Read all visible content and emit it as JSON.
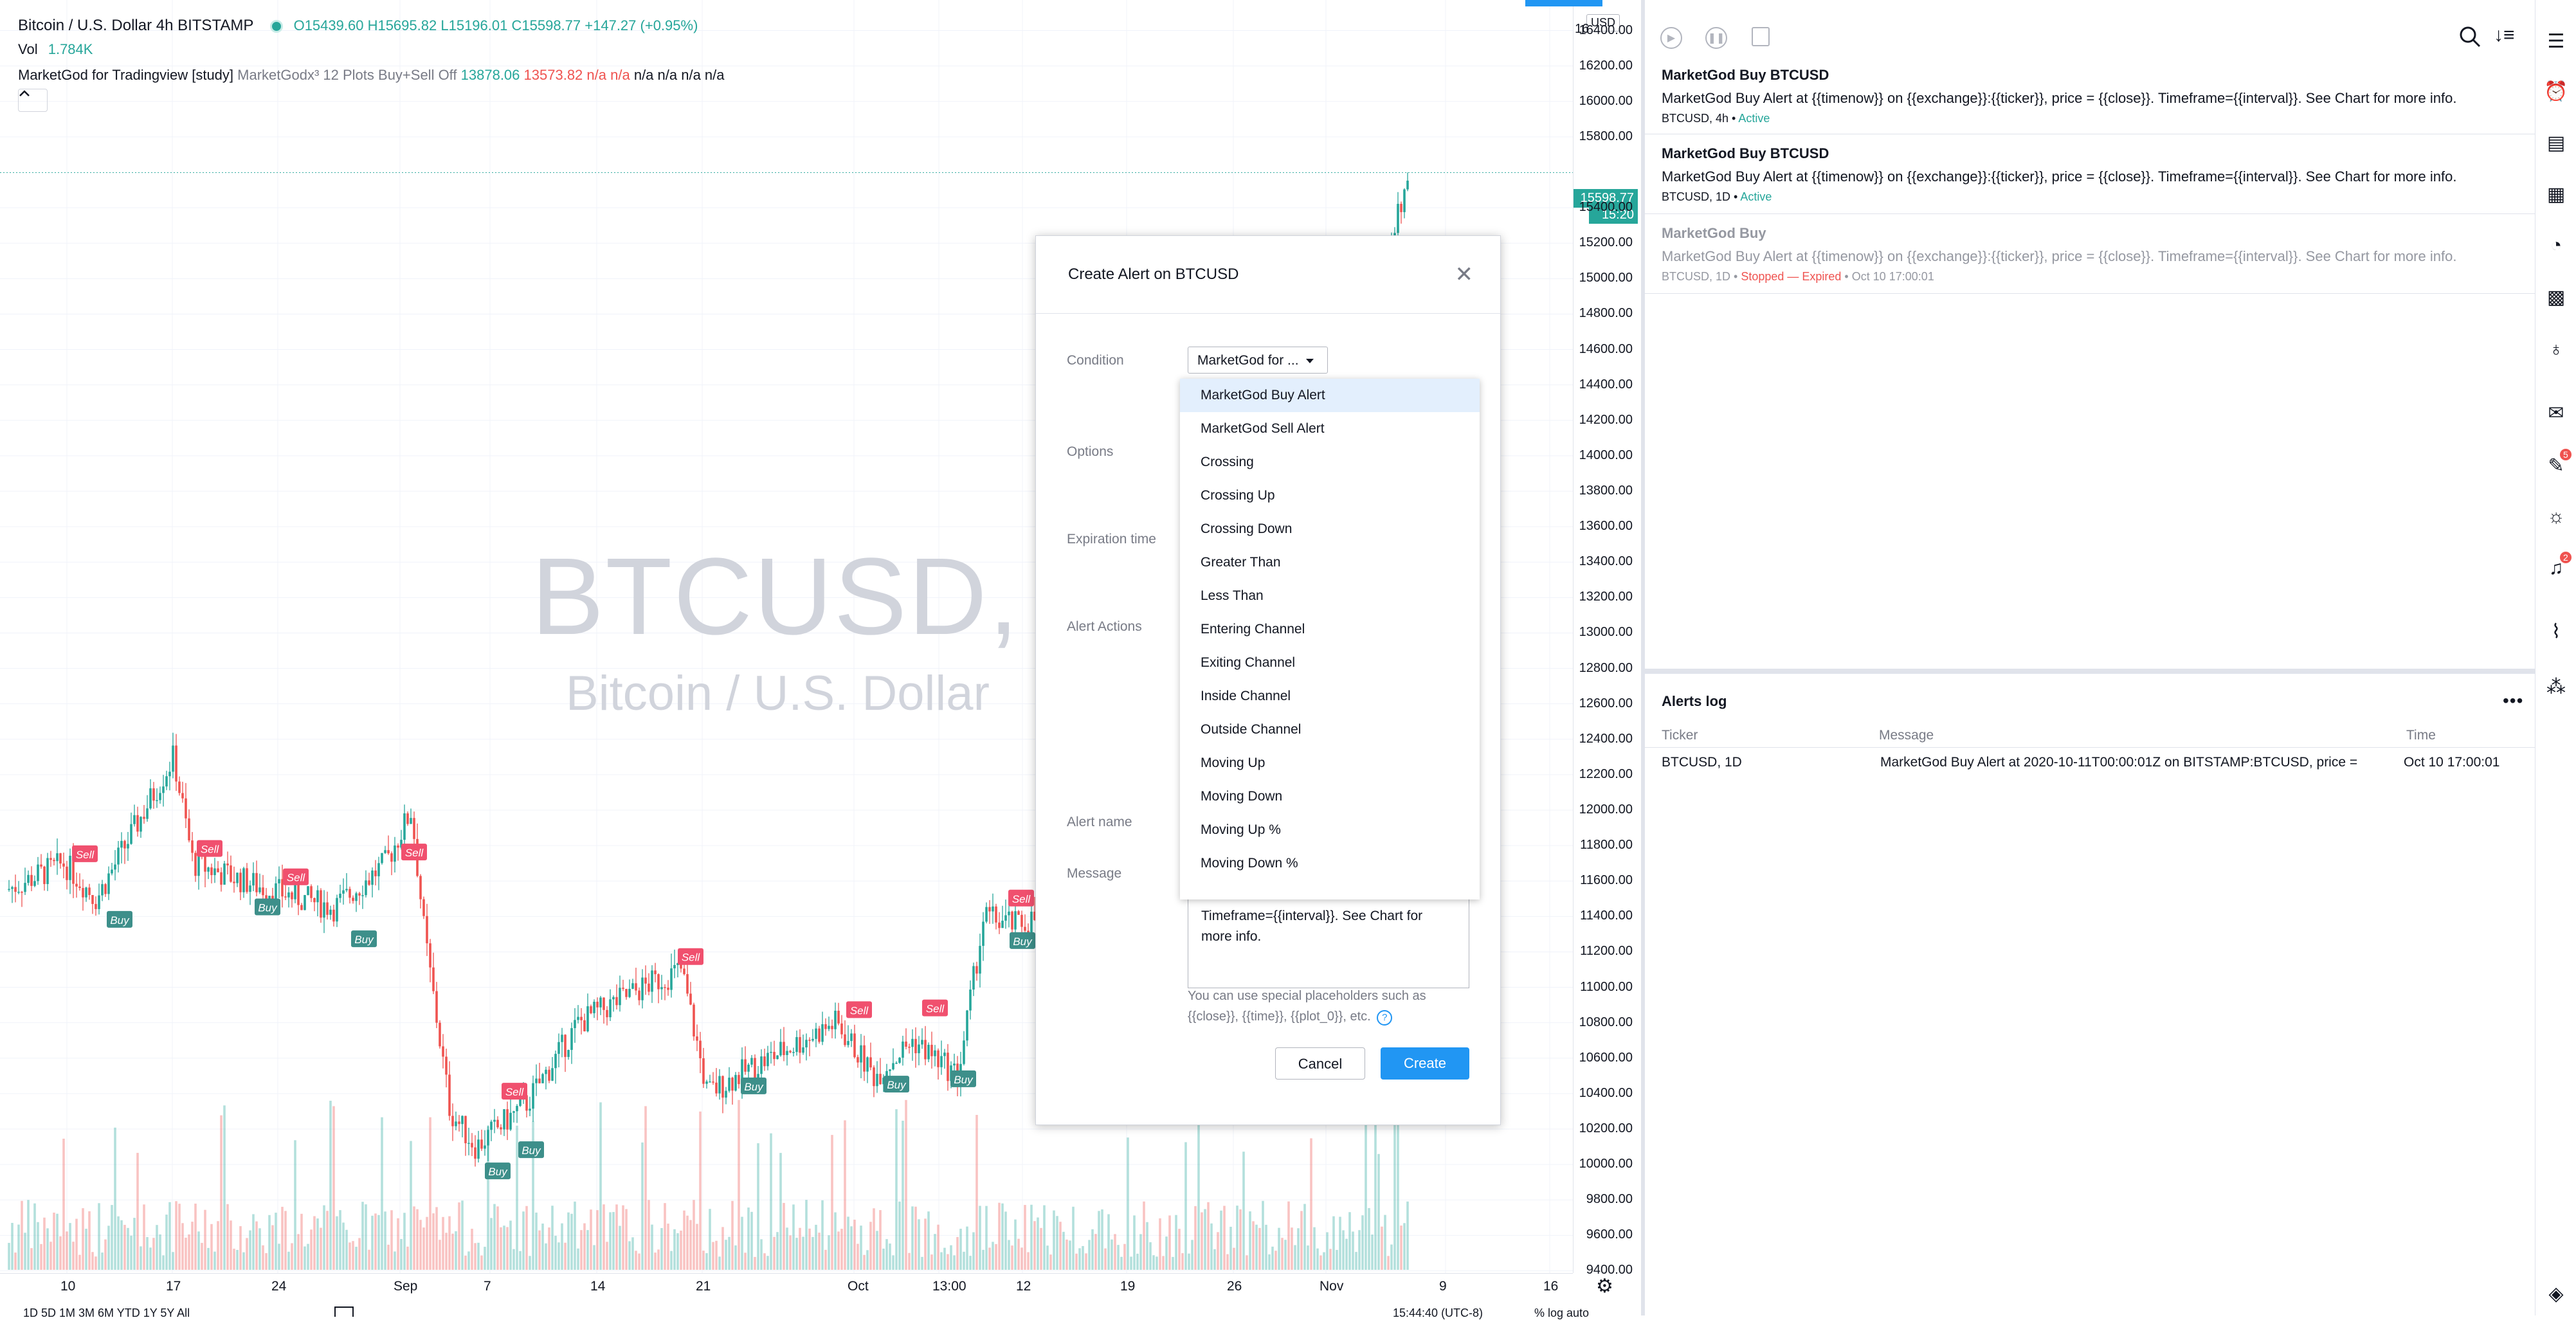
{
  "chart": {
    "symbol_line": "Bitcoin / U.S. Dollar  4h  BITSTAMP",
    "ohlc": {
      "o": "O15439.60",
      "h": "H15695.82",
      "l": "L15196.01",
      "c": "C15598.77",
      "chg": "+147.27 (+0.95%)"
    },
    "vol_label": "Vol",
    "vol_value": "1.784K",
    "study_name": "MarketGod for Tradingview [study]",
    "study_params": "MarketGodx³ 12 Plots Buy+Sell Off",
    "study_v1": "13878.06",
    "study_v2": "13573.82",
    "study_na_red": "n/a n/a",
    "study_na_black": "n/a n/a n/a n/a",
    "collapse_icon": "chevron-up-icon",
    "watermark_symbol": "BTCUSD, 4h",
    "watermark_name": "Bitcoin / U.S. Dollar",
    "price_ticks": [
      "16400.00",
      "16200.00",
      "16000.00",
      "15800.00",
      "15400.00",
      "15200.00",
      "15000.00",
      "14800.00",
      "14600.00",
      "14400.00",
      "14200.00",
      "14000.00",
      "13800.00",
      "13600.00",
      "13400.00",
      "13200.00",
      "13000.00",
      "12800.00",
      "12600.00",
      "12400.00",
      "12200.00",
      "12000.00",
      "11800.00",
      "11600.00",
      "11400.00",
      "11200.00",
      "11000.00",
      "10800.00",
      "10600.00",
      "10400.00",
      "10200.00",
      "10000.00",
      "9800.00",
      "9600.00",
      "9400.00"
    ],
    "currency": "USD",
    "axis_top_label": "16",
    "last_price": "15598.77",
    "countdown": "15:20",
    "time_ticks": [
      "10",
      "17",
      "24",
      "Sep",
      "7",
      "14",
      "21",
      "Oct",
      "13:00",
      "12",
      "19",
      "26",
      "Nov",
      "9",
      "16"
    ],
    "bottom_timeframes": "1D  5D  1M  3M  6M  YTD  1Y  5Y  All",
    "bottom_clock": "15:44:40 (UTC-8)",
    "bottom_right": "%  log  auto",
    "marker_buy": "Buy",
    "marker_sell": "Sell",
    "chart_data": {
      "type": "candlestick",
      "symbol": "BTCUSD",
      "interval": "4h",
      "ylim": [
        9300,
        16500
      ],
      "last": 15598.77,
      "x": [
        "10",
        "17",
        "24",
        "Sep",
        "7",
        "14",
        "21",
        "Oct",
        "13:00",
        "12",
        "19",
        "26",
        "Nov",
        "9",
        "16"
      ],
      "markers": [
        {
          "label": "Sell",
          "price": 11750
        },
        {
          "label": "Buy",
          "price": 11380
        },
        {
          "label": "Sell",
          "price": 11780
        },
        {
          "label": "Sell",
          "price": 11620
        },
        {
          "label": "Buy",
          "price": 11450
        },
        {
          "label": "Buy",
          "price": 11270
        },
        {
          "label": "Sell",
          "price": 11760
        },
        {
          "label": "Sell",
          "price": 10410
        },
        {
          "label": "Buy",
          "price": 10080
        },
        {
          "label": "Buy",
          "price": 9960
        },
        {
          "label": "Sell",
          "price": 11170
        },
        {
          "label": "Buy",
          "price": 10440
        },
        {
          "label": "Sell",
          "price": 10870
        },
        {
          "label": "Buy",
          "price": 10450
        },
        {
          "label": "Sell",
          "price": 10880
        },
        {
          "label": "Buy",
          "price": 10480
        },
        {
          "label": "Sell",
          "price": 11500
        },
        {
          "label": "Buy",
          "price": 11260
        }
      ]
    }
  },
  "modal": {
    "title": "Create Alert on BTCUSD",
    "close_icon": "close-icon",
    "condition_label": "Condition",
    "condition_value": "MarketGod for ...",
    "options_label": "Options",
    "expiration_label": "Expiration time",
    "actions_label": "Alert Actions",
    "name_label": "Alert name",
    "message_label": "Message",
    "dropdown_options": [
      "MarketGod Buy Alert",
      "MarketGod Sell Alert",
      "Crossing",
      "Crossing Up",
      "Crossing Down",
      "Greater Than",
      "Less Than",
      "Entering Channel",
      "Exiting Channel",
      "Inside Channel",
      "Outside Channel",
      "Moving Up",
      "Moving Down",
      "Moving Up %",
      "Moving Down %"
    ],
    "message_line1": "Timeframe={{interval}}. See Chart for",
    "message_line2": "more info.",
    "hint_text": "You can use special placeholders such as {{close}}, {{time}}, {{plot_0}}, etc.",
    "hint_icon": "question-icon",
    "cancel_label": "Cancel",
    "create_label": "Create"
  },
  "alerts": [
    {
      "title": "MarketGod Buy BTCUSD",
      "message": "MarketGod Buy Alert at {{timenow}} on {{exchange}}:{{ticker}}, price = {{close}}. Timeframe={{interval}}. See Chart for more info.",
      "meta": "BTCUSD, 4h",
      "status": "Active"
    },
    {
      "title": "MarketGod Buy BTCUSD",
      "message": "MarketGod Buy Alert at {{timenow}} on {{exchange}}:{{ticker}}, price = {{close}}. Timeframe={{interval}}. See Chart for more info.",
      "meta": "BTCUSD, 1D",
      "status": "Active"
    },
    {
      "title": "MarketGod Buy",
      "message": "MarketGod Buy Alert at {{timenow}} on {{exchange}}:{{ticker}}, price = {{close}}. Timeframe={{interval}}. See Chart for more info.",
      "meta": "BTCUSD, 1D",
      "status": "Stopped — Expired",
      "time": "Oct 10 17:00:01"
    }
  ],
  "alerts_log": {
    "title": "Alerts log",
    "menu_icon": "more-horizontal-icon",
    "col_ticker": "Ticker",
    "col_message": "Message",
    "col_time": "Time",
    "rows": [
      {
        "ticker": "BTCUSD, 1D",
        "message": "MarketGod Buy Alert at 2020-10-11T00:00:01Z on BITSTAMP:BTCUSD, price =",
        "time": "Oct 10 17:00:01"
      }
    ]
  },
  "panel_toolbar": {
    "icons": [
      "play-icon",
      "pause-icon",
      "copy-icon",
      "search-icon",
      "sort-icon"
    ]
  },
  "rightbar": {
    "icons": [
      "watchlist-icon",
      "alarm-clock-icon",
      "details-icon",
      "calendar-list-icon",
      "pie-chart-icon",
      "calendar-icon",
      "idea-bulb-icon",
      "chat-icon",
      "message-icon",
      "stream-icon",
      "notifications-icon",
      "chart-line-icon",
      "hotlist-icon",
      "layers-icon"
    ],
    "badge_chat": "5",
    "badge_notif": "2"
  },
  "colors": {
    "up": "#26a69a",
    "down": "#ef5350",
    "accent": "#2196f3",
    "last_price_bg": "#26a69a"
  }
}
